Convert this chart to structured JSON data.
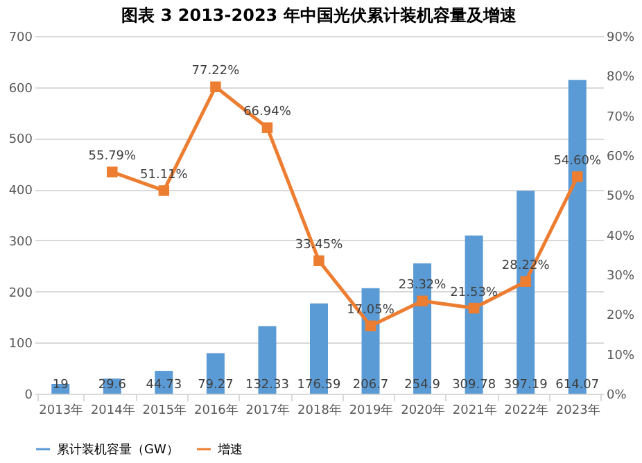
{
  "chart_data": {
    "type": "bar",
    "title": "图表 3   2013-2023 年中国光伏累计装机容量及增速",
    "categories": [
      "2013年",
      "2014年",
      "2015年",
      "2016年",
      "2017年",
      "2018年",
      "2019年",
      "2020年",
      "2021年",
      "2022年",
      "2023年"
    ],
    "series": [
      {
        "name": "累计装机容量（GW）",
        "color": "#5b9bd5",
        "values": [
          19,
          29.6,
          44.73,
          79.27,
          132.33,
          176.59,
          206.7,
          254.9,
          309.78,
          397.19,
          614.07
        ],
        "value_labels": [
          "19",
          "29.6",
          "44.73",
          "79.27",
          "132.33",
          "176.59",
          "206.7",
          "254.9",
          "309.78",
          "397.19",
          "614.07"
        ]
      },
      {
        "name": "增速",
        "type": "line",
        "axis": "y2",
        "color": "#ed7d31",
        "values": [
          null,
          55.79,
          51.11,
          77.22,
          66.94,
          33.45,
          17.05,
          23.32,
          21.53,
          28.22,
          54.6
        ],
        "value_labels": [
          null,
          "55.79%",
          "51.11%",
          "77.22%",
          "66.94%",
          "33.45%",
          "17.05%",
          "23.32%",
          "21.53%",
          "28.22%",
          "54.60%"
        ]
      }
    ],
    "ylim": [
      0,
      700
    ],
    "yticks": [
      0,
      100,
      200,
      300,
      400,
      500,
      600,
      700
    ],
    "y2lim": [
      0,
      90
    ],
    "y2ticks": [
      {
        "value": 0,
        "label": "0%"
      },
      {
        "value": 10,
        "label": "10%"
      },
      {
        "value": 20,
        "label": "20%"
      },
      {
        "value": 30,
        "label": "30%"
      },
      {
        "value": 40,
        "label": "40%"
      },
      {
        "value": 50,
        "label": "50%"
      },
      {
        "value": 60,
        "label": "60%"
      },
      {
        "value": 70,
        "label": "70%"
      },
      {
        "value": 80,
        "label": "80%"
      },
      {
        "value": 90,
        "label": "90%"
      }
    ],
    "grid": "y",
    "legend": "bottom",
    "marker": "square",
    "line_style": "solid"
  }
}
